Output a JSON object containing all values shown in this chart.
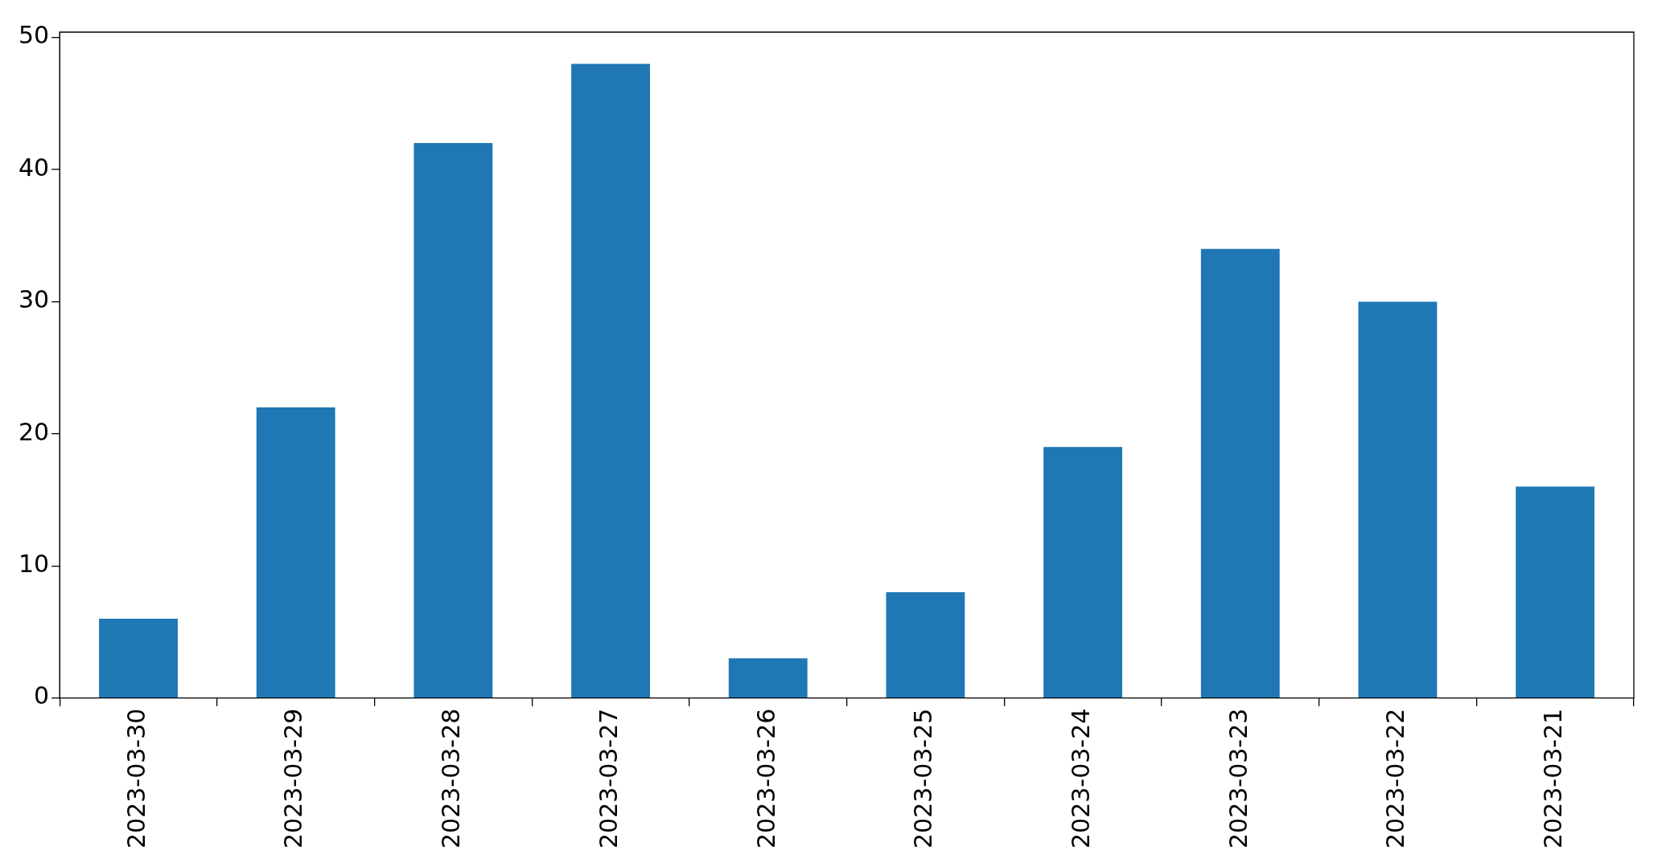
{
  "chart_data": {
    "type": "bar",
    "categories": [
      "2023-03-30",
      "2023-03-29",
      "2023-03-28",
      "2023-03-27",
      "2023-03-26",
      "2023-03-25",
      "2023-03-24",
      "2023-03-23",
      "2023-03-22",
      "2023-03-21"
    ],
    "values": [
      6,
      22,
      42,
      48,
      3,
      8,
      19,
      34,
      30,
      16
    ],
    "color": "#1f77b4",
    "ylim": [
      0,
      50.4
    ],
    "yticks": [
      0,
      10,
      20,
      30,
      40,
      50
    ],
    "grid": false,
    "legend": false
  }
}
